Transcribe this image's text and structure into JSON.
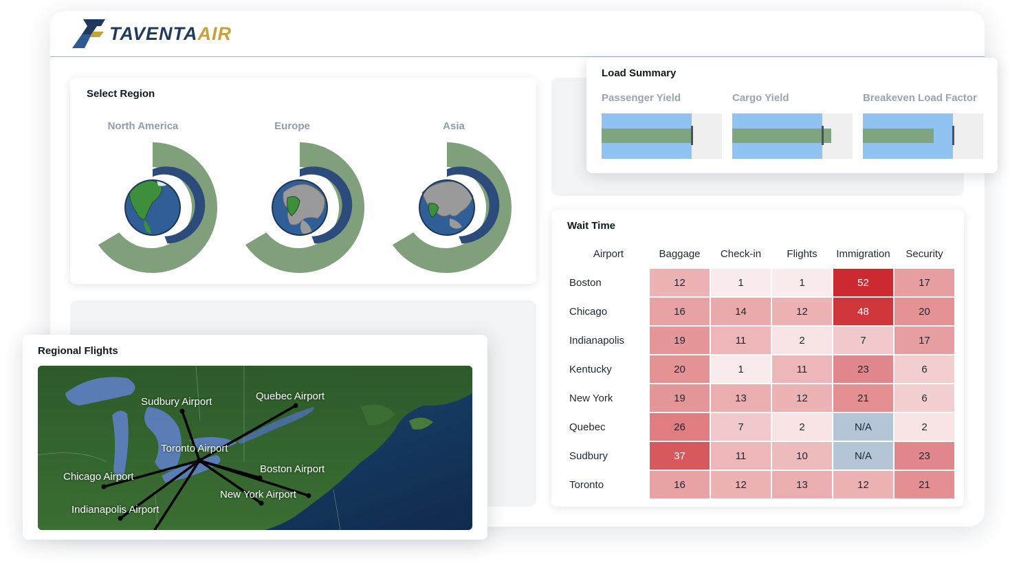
{
  "app": {
    "logo_text_primary": "TAVENTA",
    "logo_text_accent": "AIR",
    "logo_icon": "airline-wing-logo-icon"
  },
  "colors": {
    "accent_green": "#7fa07a",
    "accent_navy": "#2c4b7a",
    "bullet_range": "#90c2f2",
    "bullet_bar": "#7fa57f"
  },
  "select_region": {
    "title": "Select Region",
    "regions": [
      {
        "label": "North America",
        "icon": "north-america-globe-icon",
        "inner_fraction": 0.6,
        "outer_fraction": 0.72
      },
      {
        "label": "Europe",
        "icon": "europe-globe-icon",
        "inner_fraction": 0.6,
        "outer_fraction": 0.72
      },
      {
        "label": "Asia",
        "icon": "asia-globe-icon",
        "inner_fraction": 0.6,
        "outer_fraction": 0.72
      }
    ]
  },
  "load_summary": {
    "title": "Load Summary",
    "metrics": [
      {
        "label": "Passenger Yield",
        "range_pct": 75,
        "bar_pct": 75,
        "target_pct": 75
      },
      {
        "label": "Cargo Yield",
        "range_pct": 75,
        "bar_pct": 82,
        "target_pct": 75
      },
      {
        "label": "Breakeven Load Factor",
        "range_pct": 75,
        "bar_pct": 59,
        "target_pct": 75
      }
    ]
  },
  "wait_time": {
    "title": "Wait Time",
    "columns": [
      "Airport",
      "Baggage",
      "Check-in",
      "Flights",
      "Immigration",
      "Security"
    ],
    "rows": [
      {
        "airport": "Boston",
        "values": [
          "12",
          "1",
          "1",
          "52",
          "17"
        ]
      },
      {
        "airport": "Chicago",
        "values": [
          "16",
          "14",
          "12",
          "48",
          "20"
        ]
      },
      {
        "airport": "Indianapolis",
        "values": [
          "19",
          "11",
          "2",
          "7",
          "17"
        ]
      },
      {
        "airport": "Kentucky",
        "values": [
          "20",
          "1",
          "11",
          "23",
          "6"
        ]
      },
      {
        "airport": "New York",
        "values": [
          "19",
          "13",
          "12",
          "21",
          "6"
        ]
      },
      {
        "airport": "Quebec",
        "values": [
          "26",
          "7",
          "2",
          "N/A",
          "2"
        ]
      },
      {
        "airport": "Sudbury",
        "values": [
          "37",
          "11",
          "10",
          "N/A",
          "23"
        ]
      },
      {
        "airport": "Toronto",
        "values": [
          "16",
          "12",
          "13",
          "12",
          "21"
        ]
      }
    ]
  },
  "regional_flights": {
    "title": "Regional Flights",
    "airports": [
      {
        "label": "Sudbury Airport"
      },
      {
        "label": "Quebec Airport"
      },
      {
        "label": "Toronto Airport"
      },
      {
        "label": "Chicago Airport"
      },
      {
        "label": "Boston Airport"
      },
      {
        "label": "New York Airport"
      },
      {
        "label": "Indianapolis Airport"
      }
    ]
  }
}
